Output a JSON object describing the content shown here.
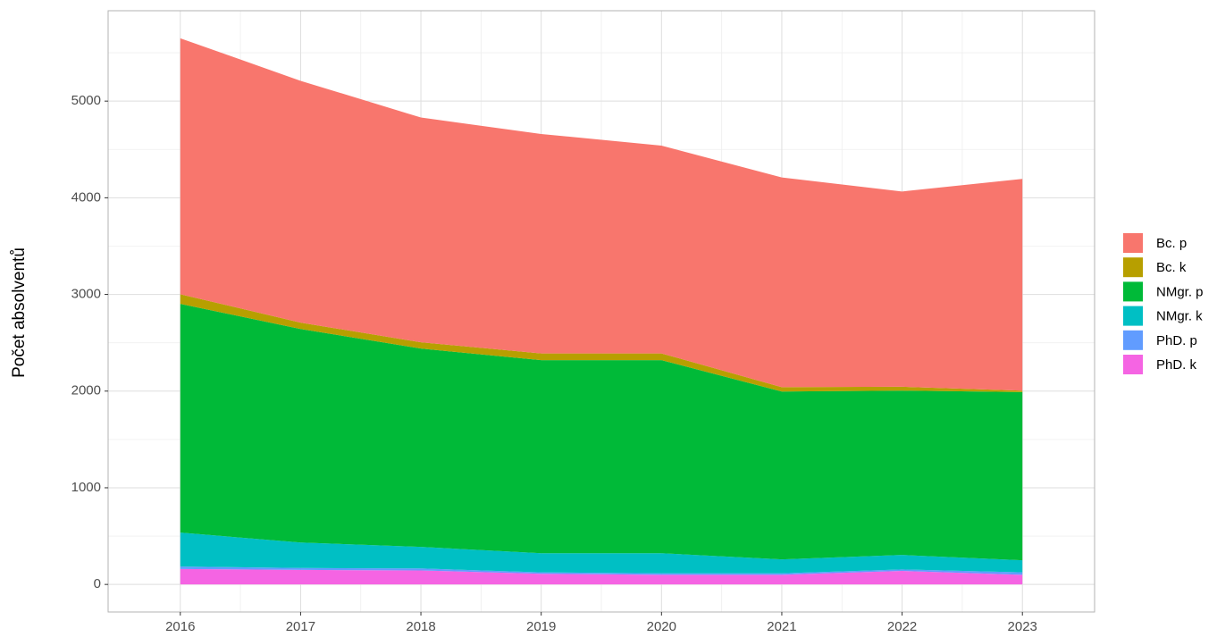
{
  "chart_data": {
    "type": "stacked-area",
    "y_label": "Počet absolventů",
    "x": [
      2016,
      2017,
      2018,
      2019,
      2020,
      2021,
      2022,
      2023
    ],
    "series": [
      {
        "name": "Bc. p",
        "color": "#F8766D",
        "values": [
          2648,
          2502,
          2325,
          2270,
          2150,
          2169,
          2020,
          2190
        ]
      },
      {
        "name": "Bc. k",
        "color": "#B79F00",
        "values": [
          100,
          65,
          65,
          70,
          70,
          45,
          40,
          15
        ]
      },
      {
        "name": "NMgr. p",
        "color": "#00BA38",
        "values": [
          2366,
          2209,
          2052,
          1997,
          1997,
          1737,
          1700,
          1740
        ]
      },
      {
        "name": "NMgr. k",
        "color": "#00BFC4",
        "values": [
          351,
          264,
          223,
          198,
          208,
          144,
          150,
          125
        ]
      },
      {
        "name": "PhD. p",
        "color": "#619CFF",
        "values": [
          25,
          20,
          20,
          15,
          15,
          15,
          15,
          25
        ]
      },
      {
        "name": "PhD. k",
        "color": "#F564E3",
        "values": [
          160,
          150,
          145,
          110,
          100,
          100,
          140,
          100
        ]
      }
    ],
    "xlim": [
      2015.4,
      2023.6
    ],
    "xticks": [
      2016,
      2017,
      2018,
      2019,
      2020,
      2021,
      2022,
      2023
    ],
    "ylim": [
      -285,
      5935
    ],
    "yticks": [
      0,
      1000,
      2000,
      3000,
      4000,
      5000
    ],
    "grid": true,
    "legend": "right"
  }
}
